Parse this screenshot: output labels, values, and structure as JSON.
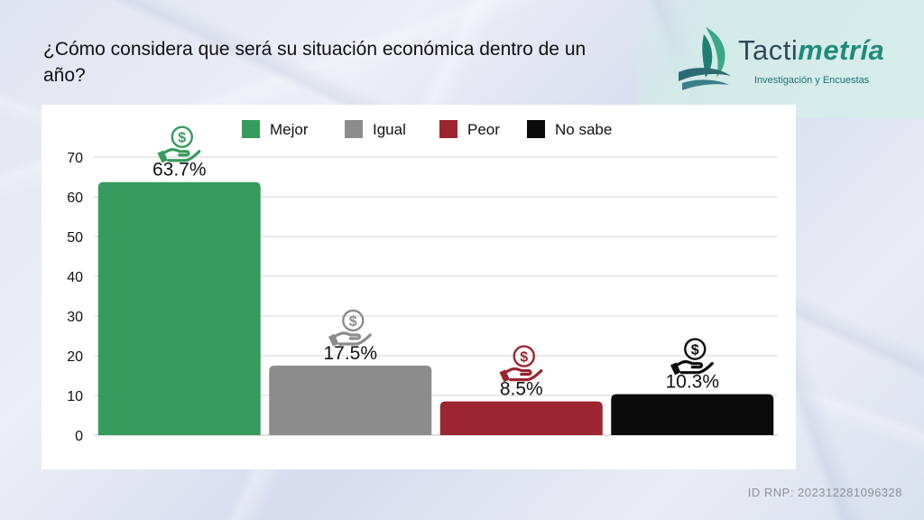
{
  "header": {
    "title": "¿Cómo considera que será su situación económica dentro de un año?"
  },
  "logo": {
    "name_prefix": "Tacti",
    "name_suffix": "metría",
    "tagline": "Investigación y Encuestas",
    "brand_color": "#1f8a78"
  },
  "footer": {
    "id_text": "ID RNP: 202312281096328"
  },
  "chart_data": {
    "type": "bar",
    "categories": [
      "Mejor",
      "Igual",
      "Peor",
      "No sabe"
    ],
    "values": [
      63.7,
      17.5,
      8.5,
      10.3
    ],
    "data_labels": [
      "63.7%",
      "17.5%",
      "8.5%",
      "10.3%"
    ],
    "colors": [
      "#369b5c",
      "#8c8c8c",
      "#9b2530",
      "#0b0b0b"
    ],
    "icon": "hand-holding-dollar-icon",
    "legend": {
      "placement": "top",
      "entries": [
        "Mejor",
        "Igual",
        "Peor",
        "No sabe"
      ]
    },
    "ylim": [
      0,
      70
    ],
    "yticks": [
      0,
      10,
      20,
      30,
      40,
      50,
      60,
      70
    ],
    "grid": true,
    "title": "",
    "xlabel": "",
    "ylabel": ""
  }
}
